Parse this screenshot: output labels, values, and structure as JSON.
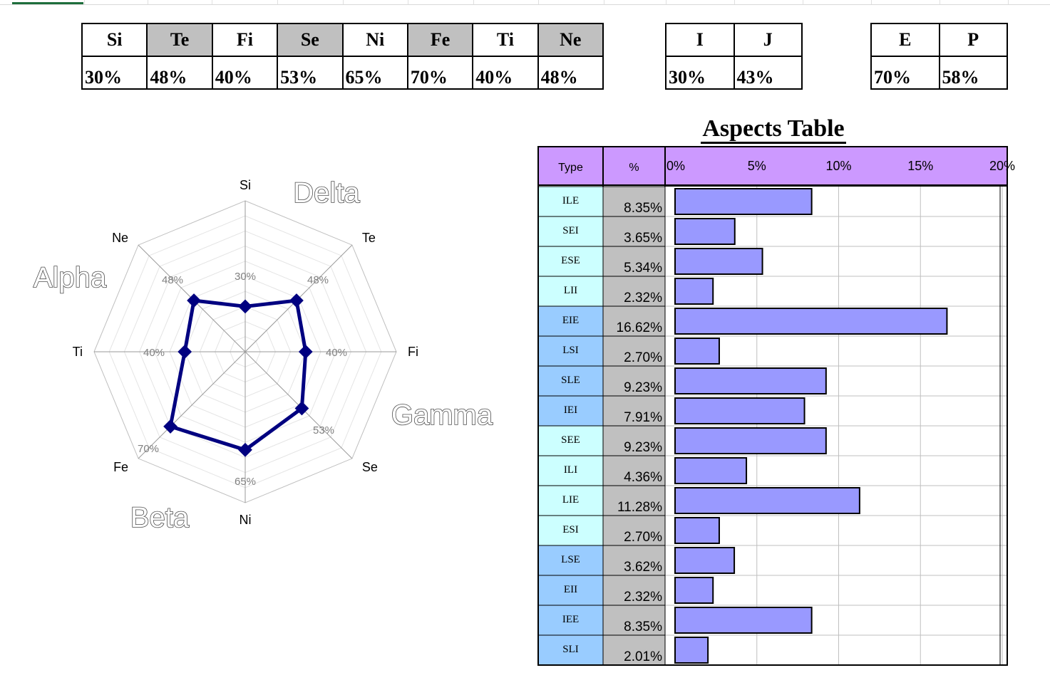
{
  "functions_table": {
    "headers": [
      "Si",
      "Te",
      "Fi",
      "Se",
      "Ni",
      "Fe",
      "Ti",
      "Ne"
    ],
    "shaded": [
      false,
      true,
      false,
      true,
      false,
      true,
      false,
      true
    ],
    "values": [
      "30%",
      "48%",
      "40%",
      "53%",
      "65%",
      "70%",
      "40%",
      "48%"
    ]
  },
  "ij_table": {
    "headers": [
      "I",
      "J"
    ],
    "values": [
      "30%",
      "43%"
    ]
  },
  "ep_table": {
    "headers": [
      "E",
      "P"
    ],
    "values": [
      "70%",
      "58%"
    ]
  },
  "radar": {
    "axes": [
      "Si",
      "Te",
      "Fi",
      "Se",
      "Ni",
      "Fe",
      "Ti",
      "Ne"
    ],
    "values": [
      30,
      48,
      40,
      53,
      65,
      70,
      40,
      48
    ],
    "value_labels": [
      "30%",
      "48%",
      "40%",
      "53%",
      "65%",
      "70%",
      "40%",
      "48%"
    ],
    "max": 100,
    "quadrants": [
      "Delta",
      "Alpha",
      "Gamma",
      "Beta"
    ],
    "line_color": "#000080"
  },
  "chart_data": {
    "type": "bar",
    "title": "Aspects Table",
    "column_headers": [
      "Type",
      "%"
    ],
    "categories": [
      "ILE",
      "SEI",
      "ESE",
      "LII",
      "EIE",
      "LSI",
      "SLE",
      "IEI",
      "SEE",
      "ILI",
      "LIE",
      "ESI",
      "LSE",
      "EII",
      "IEE",
      "SLI"
    ],
    "values": [
      8.35,
      3.65,
      5.34,
      2.32,
      16.62,
      2.7,
      9.23,
      7.91,
      9.23,
      4.36,
      11.28,
      2.7,
      3.62,
      2.32,
      8.35,
      2.01
    ],
    "value_labels": [
      "8.35%",
      "3.65%",
      "5.34%",
      "2.32%",
      "16.62%",
      "2.70%",
      "9.23%",
      "7.91%",
      "9.23%",
      "4.36%",
      "11.28%",
      "2.70%",
      "3.62%",
      "2.32%",
      "8.35%",
      "2.01%"
    ],
    "type_colors": [
      "#ccffff",
      "#ccffff",
      "#ccffff",
      "#ccffff",
      "#99ccff",
      "#99ccff",
      "#99ccff",
      "#99ccff",
      "#ccffff",
      "#ccffff",
      "#ccffff",
      "#ccffff",
      "#99ccff",
      "#99ccff",
      "#99ccff",
      "#99ccff"
    ],
    "x_ticks": [
      "0%",
      "5%",
      "10%",
      "15%",
      "20%"
    ],
    "xlim": [
      0,
      20
    ],
    "bar_color": "#9999ff",
    "header_color": "#cc99ff",
    "percent_cell_color": "#c0c0c0",
    "grid": true
  }
}
